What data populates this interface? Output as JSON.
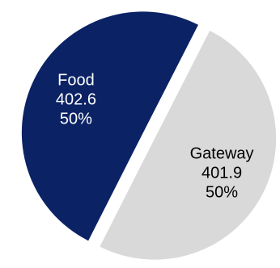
{
  "chart_data": {
    "type": "pie",
    "title": "",
    "slices": [
      {
        "label": "Gateway",
        "value": 401.9,
        "percent": "50%",
        "value_text": "401.9",
        "color": "#d9d9d9",
        "label_color": "#000000"
      },
      {
        "label": "Food",
        "value": 402.6,
        "percent": "50%",
        "value_text": "402.6",
        "color": "#0b2265",
        "label_color": "#ffffff"
      }
    ],
    "start_angle_deg": 27,
    "exploded": true,
    "legend": "none"
  }
}
